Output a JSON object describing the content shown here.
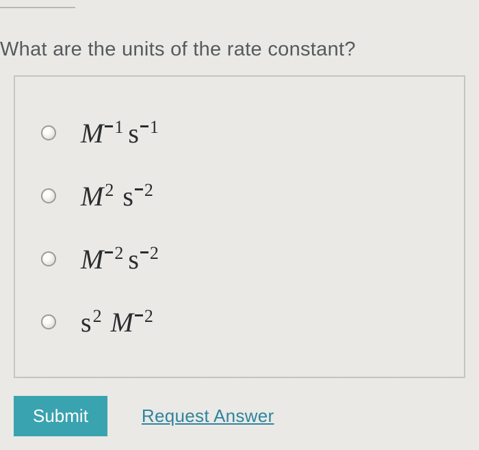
{
  "question": "What are the units of the rate constant?",
  "options": [
    {
      "id": "opt-1",
      "M": "M",
      "M_exp": "-1",
      "s": "s",
      "s_exp": "-1"
    },
    {
      "id": "opt-2",
      "M": "M",
      "M_exp": "2",
      "s": "s",
      "s_exp": "-2"
    },
    {
      "id": "opt-3",
      "M": "M",
      "M_exp": "-2",
      "s": "s",
      "s_exp": "-2"
    },
    {
      "id": "opt-4",
      "s": "s",
      "s_exp": "2",
      "M": "M",
      "M_exp": "-2",
      "swap": true
    }
  ],
  "buttons": {
    "submit": "Submit",
    "request": "Request Answer"
  },
  "colors": {
    "submit_bg": "#3aa3b0",
    "link": "#2f84a0",
    "text": "#555a5e",
    "border": "#c4c4c0"
  }
}
